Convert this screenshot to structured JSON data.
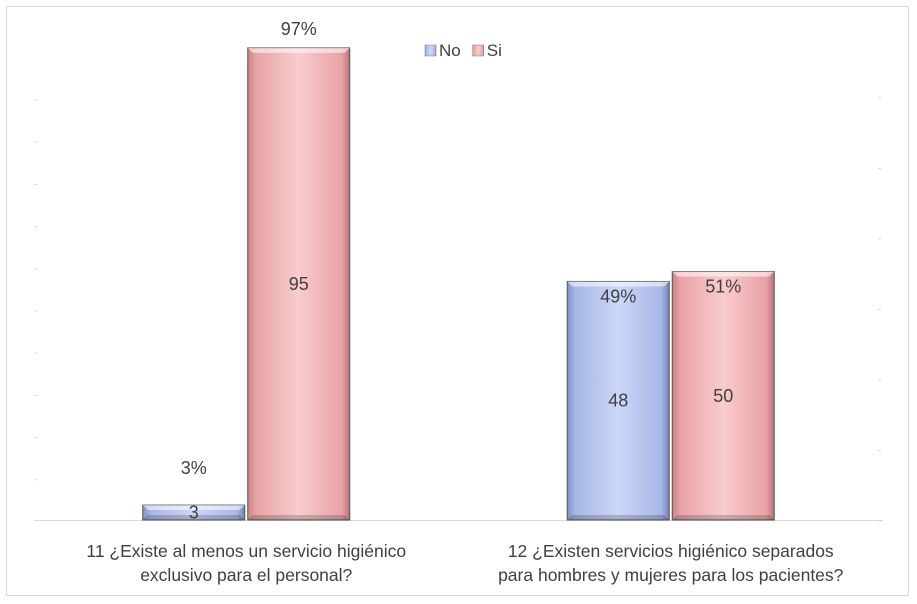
{
  "chart_data": {
    "type": "bar",
    "legend": {
      "position": "top",
      "entries": [
        "No",
        "Si"
      ]
    },
    "colors": {
      "No": "#b4c3ee",
      "Si": "#eca9ab"
    },
    "grid": false,
    "ylim": [
      0,
      100
    ],
    "categories": [
      [
        "11 ¿Existe al menos un servicio higiénico",
        "exclusivo para el personal?"
      ],
      [
        "12 ¿Existen servicios higiénico separados",
        "para hombres y mujeres para los pacientes?"
      ]
    ],
    "series": [
      {
        "name": "No",
        "values": [
          3,
          48
        ],
        "percent_labels": [
          "3%",
          "49%"
        ]
      },
      {
        "name": "Si",
        "values": [
          95,
          50
        ],
        "percent_labels": [
          "97%",
          "51%"
        ]
      }
    ]
  }
}
